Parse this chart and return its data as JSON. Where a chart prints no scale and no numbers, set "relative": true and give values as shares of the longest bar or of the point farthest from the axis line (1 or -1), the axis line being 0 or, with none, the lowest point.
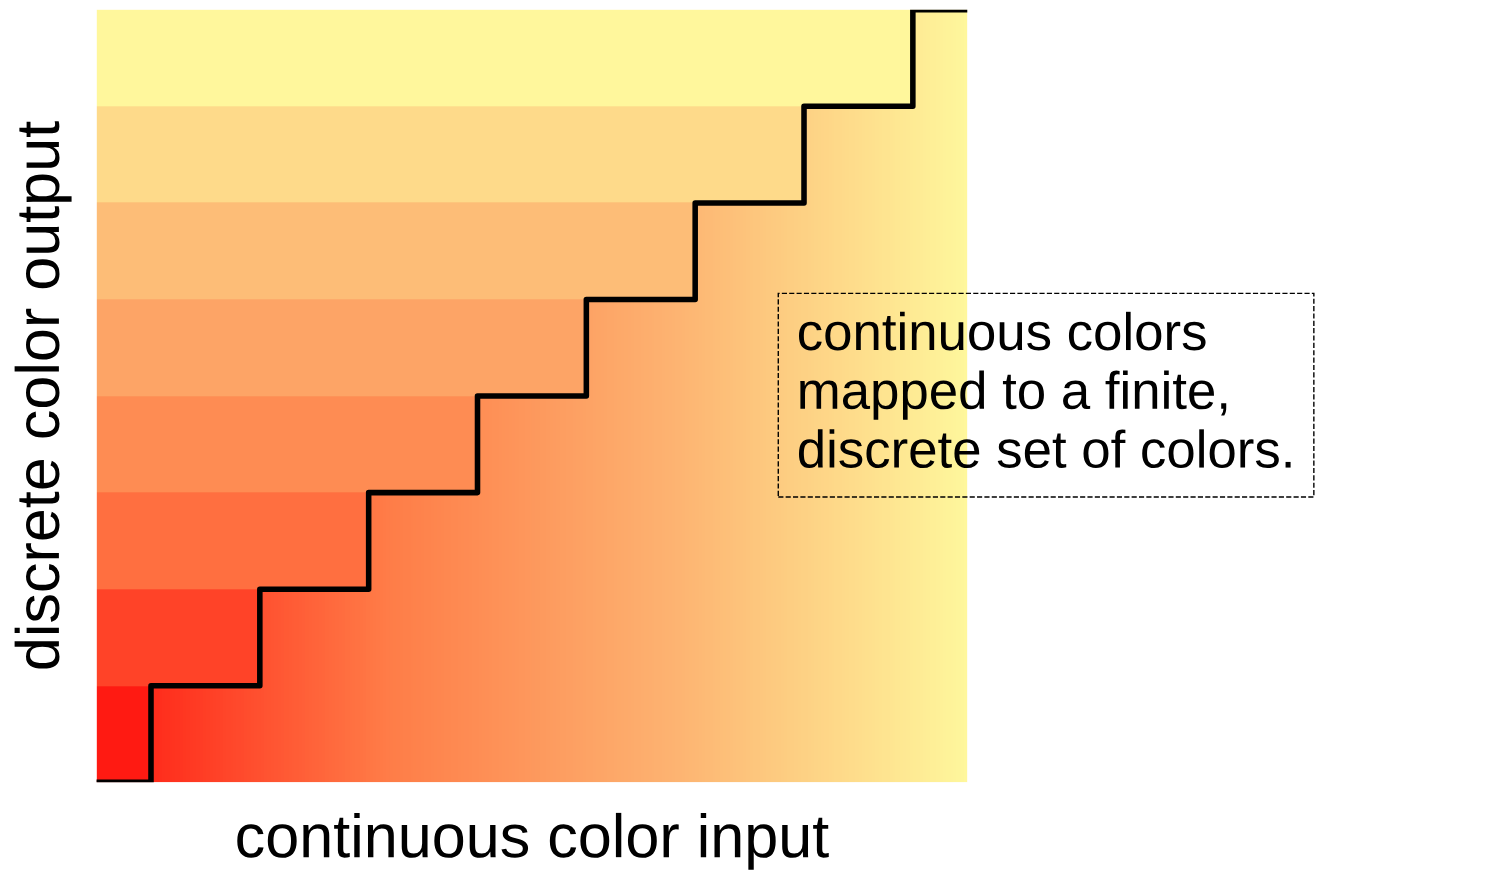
{
  "chart_data": {
    "type": "step",
    "relative": true,
    "xlabel": "continuous color input",
    "ylabel": "discrete color output",
    "categories": [
      null,
      null,
      null,
      null,
      null,
      null,
      null,
      null,
      null
    ],
    "series": [
      {
        "color": "#000000",
        "values": [
          0,
          0.125,
          0.25,
          0.375,
          0.5,
          0.625,
          0.75,
          0.875,
          1
        ]
      }
    ],
    "annotations": [
      "continuous colors\nmapped to a finite,\ndiscrete set of colors."
    ],
    "grid": false,
    "legend": false,
    "tick_labels": false,
    "marker": "none",
    "line_style": "solid"
  }
}
